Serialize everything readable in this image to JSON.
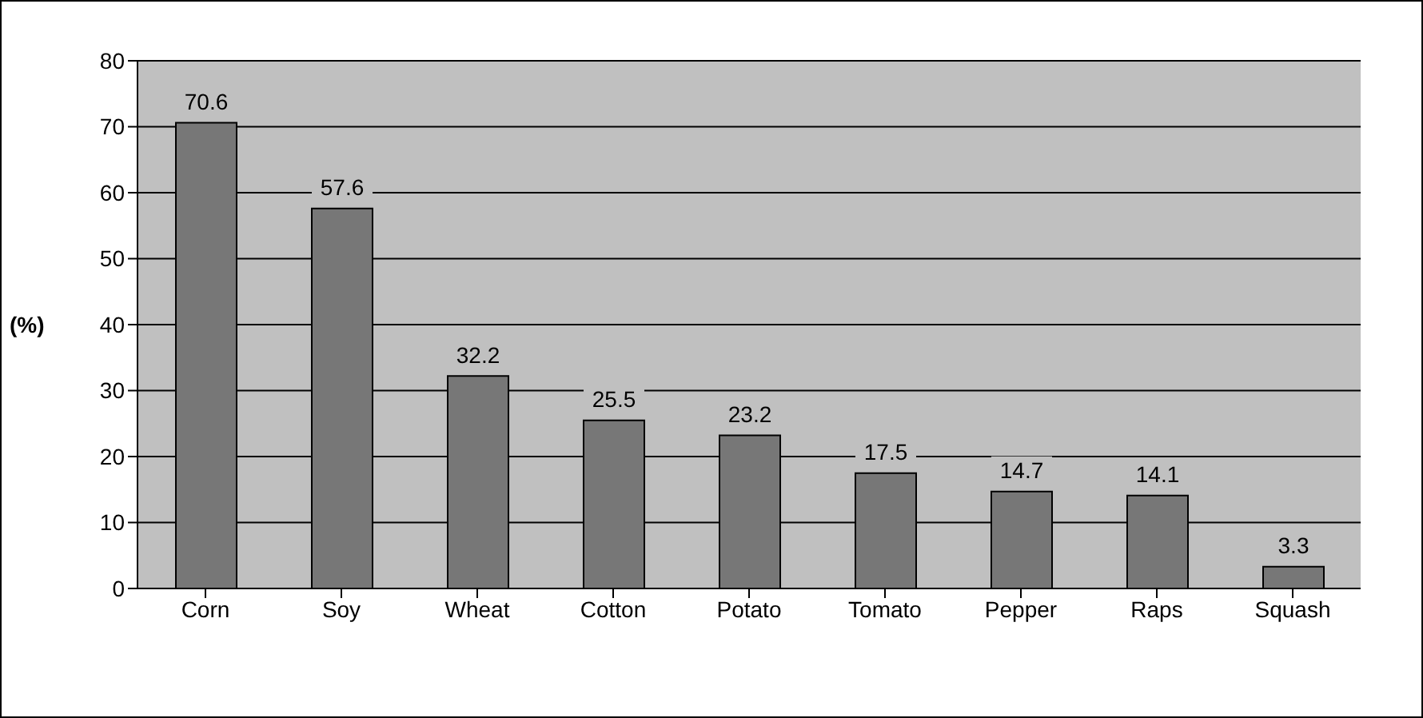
{
  "chart_data": {
    "type": "bar",
    "ylabel": "(%)",
    "categories": [
      "Corn",
      "Soy",
      "Wheat",
      "Cotton",
      "Potato",
      "Tomato",
      "Pepper",
      "Raps",
      "Squash"
    ],
    "values": [
      70.6,
      57.6,
      32.2,
      25.5,
      23.2,
      17.5,
      14.7,
      14.1,
      3.3
    ],
    "color": "#777777",
    "ylim": [
      0,
      80
    ],
    "yticks": [
      0,
      10,
      20,
      30,
      40,
      50,
      60,
      70,
      80
    ],
    "grid": "y",
    "data_labels": true
  }
}
